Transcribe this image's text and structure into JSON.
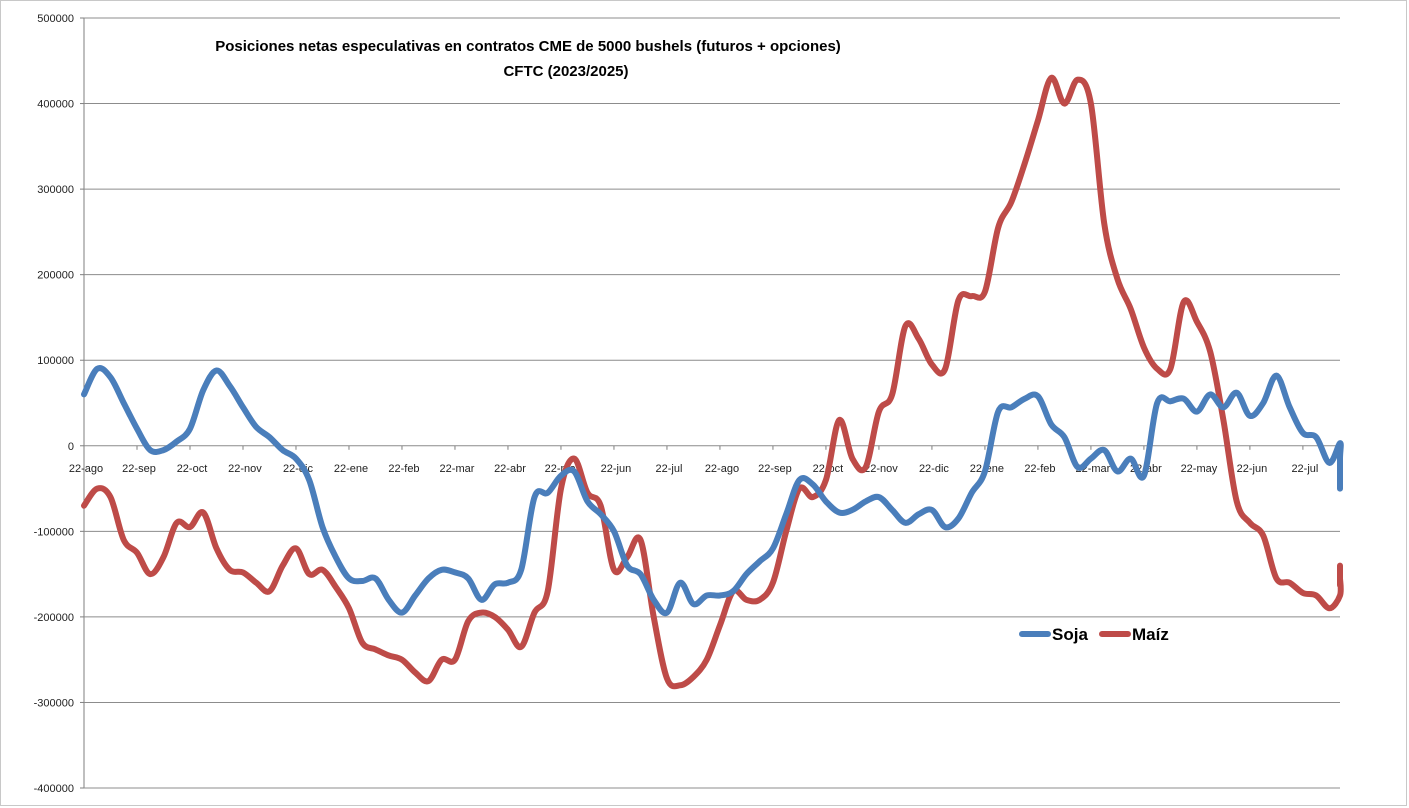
{
  "chart_data": {
    "type": "line",
    "title": "Posiciones netas especulativas en contratos CME de 5000 bushels (futuros + opciones)",
    "subtitle": "CFTC (2023/2025)",
    "xlabel": "",
    "ylabel": "",
    "ylim": [
      -400000,
      500000
    ],
    "yticks": [
      500000,
      400000,
      300000,
      200000,
      100000,
      0,
      -100000,
      -200000,
      -300000,
      -400000
    ],
    "ytick_labels": [
      "500000",
      "400000",
      "300000",
      "200000",
      "100000",
      "0",
      "-100000",
      "-200000",
      "-300000",
      "-400000"
    ],
    "xticks": [
      "22-ago",
      "22-sep",
      "22-oct",
      "22-nov",
      "22-dic",
      "22-ene",
      "22-feb",
      "22-mar",
      "22-abr",
      "22-may",
      "22-jun",
      "22-jul",
      "22-ago",
      "22-sep",
      "22-oct",
      "22-nov",
      "22-dic",
      "22-ene",
      "22-feb",
      "22-mar",
      "22-abr",
      "22-may",
      "22-jun",
      "22-jul"
    ],
    "grid": true,
    "legend_position": "lower-right",
    "series": [
      {
        "name": "Soja",
        "color": "#4a7ebb",
        "points": [
          [
            0.0,
            60000
          ],
          [
            0.25,
            90000
          ],
          [
            0.5,
            80000
          ],
          [
            0.75,
            50000
          ],
          [
            1.0,
            20000
          ],
          [
            1.25,
            -5000
          ],
          [
            1.5,
            -5000
          ],
          [
            1.75,
            5000
          ],
          [
            2.0,
            20000
          ],
          [
            2.25,
            65000
          ],
          [
            2.5,
            88000
          ],
          [
            2.75,
            70000
          ],
          [
            3.0,
            45000
          ],
          [
            3.25,
            22000
          ],
          [
            3.5,
            10000
          ],
          [
            3.75,
            -5000
          ],
          [
            4.0,
            -15000
          ],
          [
            4.25,
            -40000
          ],
          [
            4.5,
            -95000
          ],
          [
            4.75,
            -130000
          ],
          [
            5.0,
            -155000
          ],
          [
            5.25,
            -158000
          ],
          [
            5.5,
            -155000
          ],
          [
            5.75,
            -180000
          ],
          [
            6.0,
            -195000
          ],
          [
            6.25,
            -175000
          ],
          [
            6.5,
            -155000
          ],
          [
            6.75,
            -145000
          ],
          [
            7.0,
            -148000
          ],
          [
            7.25,
            -155000
          ],
          [
            7.5,
            -180000
          ],
          [
            7.75,
            -162000
          ],
          [
            8.0,
            -160000
          ],
          [
            8.25,
            -145000
          ],
          [
            8.5,
            -60000
          ],
          [
            8.75,
            -55000
          ],
          [
            9.0,
            -35000
          ],
          [
            9.25,
            -30000
          ],
          [
            9.5,
            -65000
          ],
          [
            9.75,
            -80000
          ],
          [
            10.0,
            -100000
          ],
          [
            10.25,
            -140000
          ],
          [
            10.5,
            -150000
          ],
          [
            10.75,
            -180000
          ],
          [
            11.0,
            -195000
          ],
          [
            11.25,
            -160000
          ],
          [
            11.5,
            -185000
          ],
          [
            11.75,
            -175000
          ],
          [
            12.0,
            -175000
          ],
          [
            12.25,
            -170000
          ],
          [
            12.5,
            -150000
          ],
          [
            12.75,
            -135000
          ],
          [
            13.0,
            -120000
          ],
          [
            13.25,
            -80000
          ],
          [
            13.5,
            -40000
          ],
          [
            13.75,
            -45000
          ],
          [
            14.0,
            -65000
          ],
          [
            14.25,
            -78000
          ],
          [
            14.5,
            -75000
          ],
          [
            14.75,
            -65000
          ],
          [
            15.0,
            -60000
          ],
          [
            15.25,
            -75000
          ],
          [
            15.5,
            -90000
          ],
          [
            15.75,
            -80000
          ],
          [
            16.0,
            -75000
          ],
          [
            16.25,
            -95000
          ],
          [
            16.5,
            -85000
          ],
          [
            16.75,
            -55000
          ],
          [
            17.0,
            -30000
          ],
          [
            17.25,
            40000
          ],
          [
            17.5,
            45000
          ],
          [
            17.75,
            55000
          ],
          [
            18.0,
            58000
          ],
          [
            18.25,
            25000
          ],
          [
            18.5,
            10000
          ],
          [
            18.75,
            -25000
          ],
          [
            19.0,
            -15000
          ],
          [
            19.25,
            -5000
          ],
          [
            19.5,
            -30000
          ],
          [
            19.75,
            -15000
          ],
          [
            20.0,
            -35000
          ],
          [
            20.25,
            50000
          ],
          [
            20.5,
            52000
          ],
          [
            20.75,
            55000
          ],
          [
            21.0,
            40000
          ],
          [
            21.25,
            60000
          ],
          [
            21.5,
            45000
          ],
          [
            21.75,
            62000
          ],
          [
            22.0,
            35000
          ],
          [
            22.25,
            50000
          ],
          [
            22.5,
            82000
          ],
          [
            22.75,
            45000
          ],
          [
            23.0,
            15000
          ],
          [
            23.25,
            10000
          ],
          [
            23.5,
            -20000
          ],
          [
            23.75,
            3000
          ],
          [
            24.0,
            -15000
          ],
          [
            24.25,
            -50000
          ]
        ]
      },
      {
        "name": "Maíz",
        "color": "#be4b48",
        "points": [
          [
            0.0,
            -70000
          ],
          [
            0.25,
            -50000
          ],
          [
            0.5,
            -60000
          ],
          [
            0.75,
            -110000
          ],
          [
            1.0,
            -125000
          ],
          [
            1.25,
            -150000
          ],
          [
            1.5,
            -130000
          ],
          [
            1.75,
            -90000
          ],
          [
            2.0,
            -95000
          ],
          [
            2.25,
            -78000
          ],
          [
            2.5,
            -120000
          ],
          [
            2.75,
            -145000
          ],
          [
            3.0,
            -148000
          ],
          [
            3.25,
            -160000
          ],
          [
            3.5,
            -170000
          ],
          [
            3.75,
            -140000
          ],
          [
            4.0,
            -120000
          ],
          [
            4.25,
            -150000
          ],
          [
            4.5,
            -145000
          ],
          [
            4.75,
            -165000
          ],
          [
            5.0,
            -190000
          ],
          [
            5.25,
            -230000
          ],
          [
            5.5,
            -238000
          ],
          [
            5.75,
            -245000
          ],
          [
            6.0,
            -250000
          ],
          [
            6.25,
            -265000
          ],
          [
            6.5,
            -275000
          ],
          [
            6.75,
            -250000
          ],
          [
            7.0,
            -250000
          ],
          [
            7.25,
            -205000
          ],
          [
            7.5,
            -195000
          ],
          [
            7.75,
            -200000
          ],
          [
            8.0,
            -215000
          ],
          [
            8.25,
            -235000
          ],
          [
            8.5,
            -195000
          ],
          [
            8.75,
            -170000
          ],
          [
            9.0,
            -50000
          ],
          [
            9.25,
            -15000
          ],
          [
            9.5,
            -55000
          ],
          [
            9.75,
            -70000
          ],
          [
            10.0,
            -145000
          ],
          [
            10.25,
            -130000
          ],
          [
            10.5,
            -110000
          ],
          [
            10.75,
            -200000
          ],
          [
            11.0,
            -272000
          ],
          [
            11.25,
            -280000
          ],
          [
            11.5,
            -270000
          ],
          [
            11.75,
            -250000
          ],
          [
            12.0,
            -210000
          ],
          [
            12.25,
            -170000
          ],
          [
            12.5,
            -180000
          ],
          [
            12.75,
            -180000
          ],
          [
            13.0,
            -160000
          ],
          [
            13.25,
            -100000
          ],
          [
            13.5,
            -50000
          ],
          [
            13.75,
            -60000
          ],
          [
            14.0,
            -40000
          ],
          [
            14.25,
            30000
          ],
          [
            14.5,
            -15000
          ],
          [
            14.75,
            -25000
          ],
          [
            15.0,
            40000
          ],
          [
            15.25,
            60000
          ],
          [
            15.5,
            140000
          ],
          [
            15.75,
            125000
          ],
          [
            16.0,
            95000
          ],
          [
            16.25,
            90000
          ],
          [
            16.5,
            170000
          ],
          [
            16.75,
            175000
          ],
          [
            17.0,
            180000
          ],
          [
            17.25,
            255000
          ],
          [
            17.5,
            285000
          ],
          [
            17.75,
            330000
          ],
          [
            18.0,
            380000
          ],
          [
            18.25,
            430000
          ],
          [
            18.5,
            400000
          ],
          [
            18.75,
            428000
          ],
          [
            19.0,
            400000
          ],
          [
            19.25,
            260000
          ],
          [
            19.5,
            195000
          ],
          [
            19.75,
            160000
          ],
          [
            20.0,
            115000
          ],
          [
            20.25,
            90000
          ],
          [
            20.5,
            90000
          ],
          [
            20.75,
            168000
          ],
          [
            21.0,
            145000
          ],
          [
            21.25,
            110000
          ],
          [
            21.5,
            30000
          ],
          [
            21.75,
            -65000
          ],
          [
            22.0,
            -90000
          ],
          [
            22.25,
            -105000
          ],
          [
            22.5,
            -155000
          ],
          [
            22.75,
            -160000
          ],
          [
            23.0,
            -172000
          ],
          [
            23.25,
            -175000
          ],
          [
            23.5,
            -190000
          ],
          [
            23.75,
            -175000
          ],
          [
            24.0,
            -155000
          ],
          [
            24.25,
            -158000
          ],
          [
            24.5,
            -162000
          ],
          [
            24.75,
            -140000
          ]
        ]
      }
    ]
  }
}
